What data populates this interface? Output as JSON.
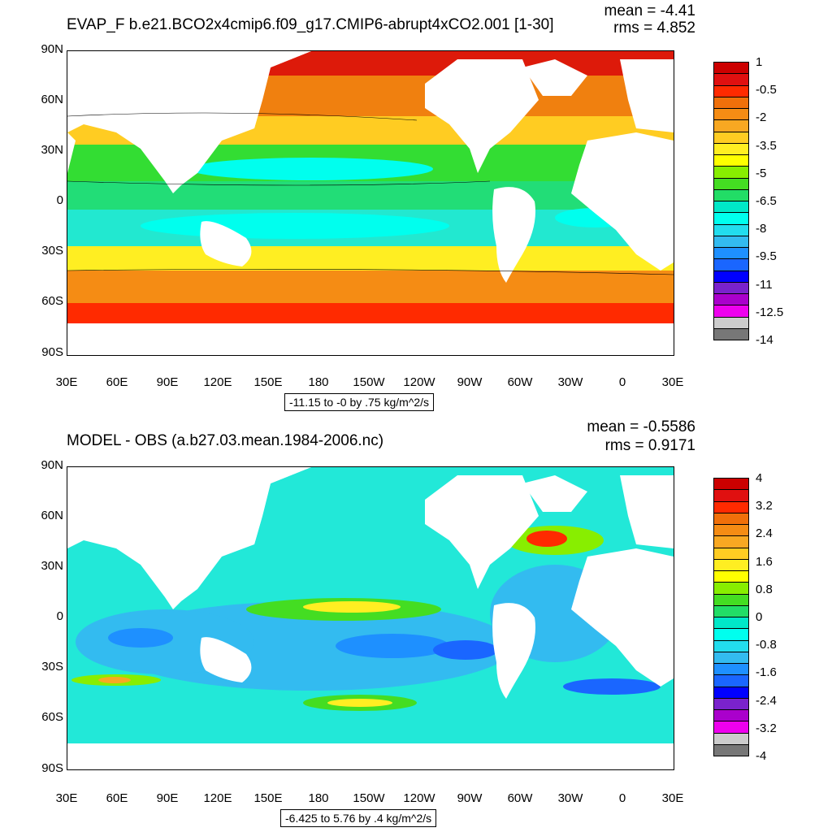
{
  "top": {
    "title": "EVAP_F b.e21.BCO2x4cmip6.f09_g17.CMIP6-abrupt4xCO2.001 [1-30]",
    "mean": "mean = -4.41",
    "rms": "rms = 4.852",
    "range_label": "-11.15 to -0 by .75 kg/m^2/s",
    "colorbar_labels": [
      "1",
      "-0.5",
      "-2",
      "-3.5",
      "-5",
      "-6.5",
      "-8",
      "-9.5",
      "-11",
      "-12.5",
      "-14"
    ],
    "colorbar_colors": [
      "#cc0000",
      "#e01010",
      "#ff2a00",
      "#f0700a",
      "#f58c14",
      "#f8a822",
      "#ffcc22",
      "#ffee22",
      "#ffff00",
      "#88ee00",
      "#44dd22",
      "#22dd66",
      "#00e8c8",
      "#00ffee",
      "#22ddee",
      "#33bbf0",
      "#1e90ff",
      "#1a66ff",
      "#0000ff",
      "#7a22cc",
      "#aa00cc",
      "#ee00ee",
      "#cccccc",
      "#777777"
    ]
  },
  "bottom": {
    "title": "MODEL - OBS (a.b27.03.mean.1984-2006.nc)",
    "mean": "mean = -0.5586",
    "rms": "rms = 0.9171",
    "range_label": "-6.425 to 5.76 by .4 kg/m^2/s",
    "colorbar_labels": [
      "4",
      "3.2",
      "2.4",
      "1.6",
      "0.8",
      "0",
      "-0.8",
      "-1.6",
      "-2.4",
      "-3.2",
      "-4"
    ],
    "colorbar_colors": [
      "#cc0000",
      "#e01010",
      "#ff2a00",
      "#f0700a",
      "#f58c14",
      "#f8a822",
      "#ffcc22",
      "#ffee22",
      "#ffff00",
      "#88ee00",
      "#44dd22",
      "#22dd66",
      "#00e8c8",
      "#00ffee",
      "#22ddee",
      "#33bbf0",
      "#1e90ff",
      "#1a66ff",
      "#0000ff",
      "#7a22cc",
      "#aa00cc",
      "#ee00ee",
      "#cccccc",
      "#777777"
    ]
  },
  "lat_labels": [
    "90N",
    "60N",
    "30N",
    "0",
    "30S",
    "60S",
    "90S"
  ],
  "lon_labels": [
    "30E",
    "60E",
    "90E",
    "120E",
    "150E",
    "180",
    "150W",
    "120W",
    "90W",
    "60W",
    "30W",
    "0",
    "30E"
  ]
}
